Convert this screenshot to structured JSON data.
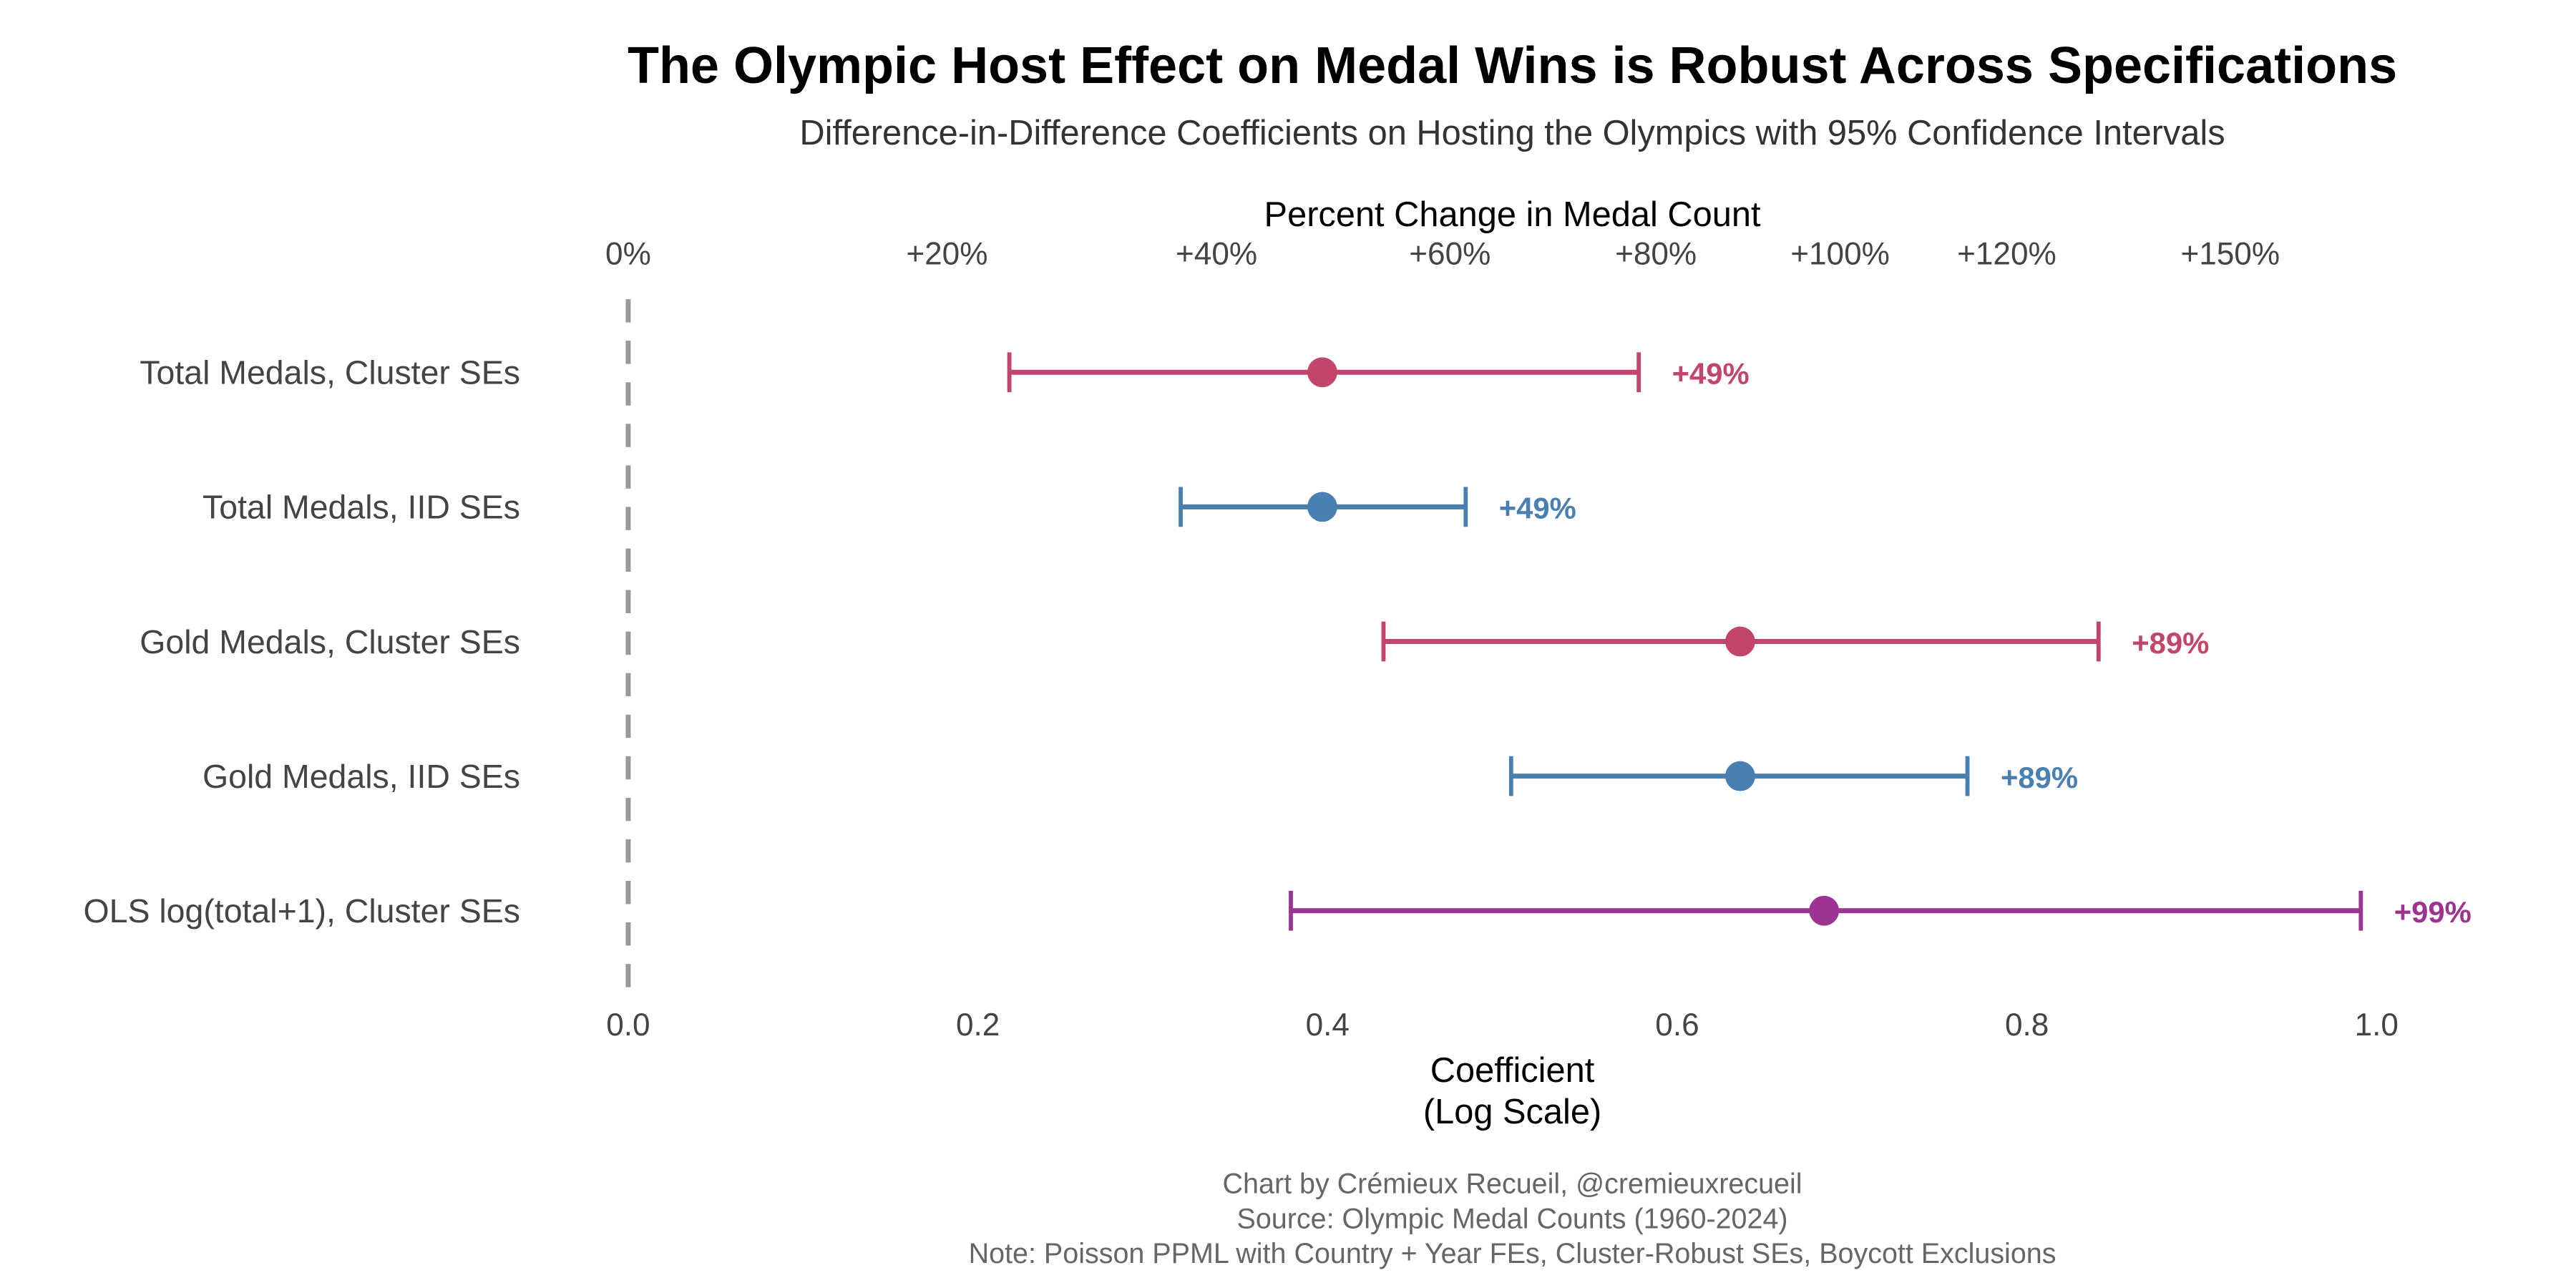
{
  "chart_data": {
    "type": "errorbar",
    "title": "The Olympic Host Effect on Medal Wins is Robust Across Specifications",
    "subtitle": "Difference-in-Difference Coefficients on Hosting the Olympics with 95% Confidence Intervals",
    "xlabel_line1": "Coefficient",
    "xlabel_line2": "(Log Scale)",
    "top_axis_label": "Percent Change in Medal Count",
    "xlim": [
      0,
      1.0
    ],
    "x_ticks": [
      0.0,
      0.2,
      0.4,
      0.6,
      0.8,
      1.0
    ],
    "x_tick_labels": [
      "0.0",
      "0.2",
      "0.4",
      "0.6",
      "0.8",
      "1.0"
    ],
    "top_ticks": [
      {
        "pct": 0,
        "label": "0%"
      },
      {
        "pct": 20,
        "label": "+20%"
      },
      {
        "pct": 40,
        "label": "+40%"
      },
      {
        "pct": 60,
        "label": "+60%"
      },
      {
        "pct": 80,
        "label": "+80%"
      },
      {
        "pct": 100,
        "label": "+100%"
      },
      {
        "pct": 120,
        "label": "+120%"
      },
      {
        "pct": 150,
        "label": "+150%"
      }
    ],
    "reference_line": 0,
    "series": [
      {
        "name": "Total Medals, Cluster SEs",
        "estimate": 0.397,
        "ci_low": 0.218,
        "ci_high": 0.578,
        "label": "+49%",
        "color": "#c2466b"
      },
      {
        "name": "Total Medals, IID SEs",
        "estimate": 0.397,
        "ci_low": 0.316,
        "ci_high": 0.479,
        "label": "+49%",
        "color": "#4a7fb1"
      },
      {
        "name": "Gold Medals, Cluster SEs",
        "estimate": 0.636,
        "ci_low": 0.432,
        "ci_high": 0.841,
        "label": "+89%",
        "color": "#c2466b"
      },
      {
        "name": "Gold Medals, IID SEs",
        "estimate": 0.636,
        "ci_low": 0.505,
        "ci_high": 0.766,
        "label": "+89%",
        "color": "#4a7fb1"
      },
      {
        "name": "OLS log(total+1), Cluster SEs",
        "estimate": 0.684,
        "ci_low": 0.379,
        "ci_high": 0.991,
        "label": "+99%",
        "color": "#9c3591"
      }
    ],
    "caption": [
      "Chart by Crémieux Recueil, @cremieuxrecueil",
      "Source: Olympic Medal Counts (1960-2024)",
      "Note: Poisson PPML with Country + Year FEs, Cluster-Robust SEs, Boycott Exclusions"
    ]
  }
}
